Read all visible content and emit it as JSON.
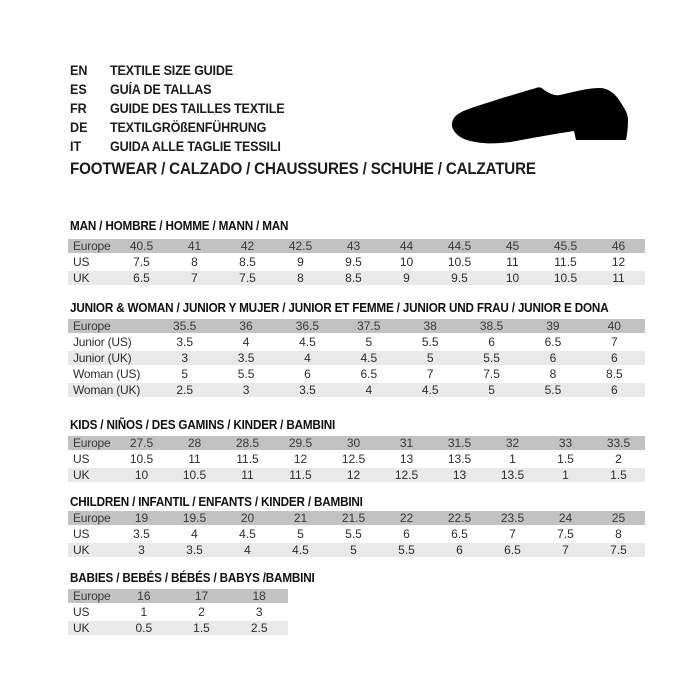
{
  "header": {
    "languages": [
      {
        "code": "EN",
        "label": "TEXTILE SIZE GUIDE"
      },
      {
        "code": "ES",
        "label": "GUÍA DE TALLAS"
      },
      {
        "code": "FR",
        "label": "GUIDE DES TAILLES TEXTILE"
      },
      {
        "code": "DE",
        "label": "TEXTILGRÖßENFÜHRUNG"
      },
      {
        "code": "IT",
        "label": "GUIDA ALLE TAGLIE TESSILI"
      }
    ],
    "category_line": "FOOTWEAR / CALZADO / CHAUSSURES / SCHUHE / CALZATURE",
    "shoe_icon": "dress-shoe-silhouette"
  },
  "tables": [
    {
      "title": "MAN / HOMBRE / HOMME / MANN / MAN",
      "rows": [
        {
          "label": "Europe",
          "values": [
            "40.5",
            "41",
            "42",
            "42.5",
            "43",
            "44",
            "44.5",
            "45",
            "45.5",
            "46"
          ]
        },
        {
          "label": "US",
          "values": [
            "7.5",
            "8",
            "8.5",
            "9",
            "9.5",
            "10",
            "10.5",
            "11",
            "11.5",
            "12"
          ]
        },
        {
          "label": "UK",
          "values": [
            "6.5",
            "7",
            "7.5",
            "8",
            "8.5",
            "9",
            "9.5",
            "10",
            "10.5",
            "11"
          ]
        }
      ]
    },
    {
      "title": "JUNIOR & WOMAN / JUNIOR Y MUJER / JUNIOR ET FEMME / JUNIOR UND FRAU / JUNIOR E DONA",
      "rows": [
        {
          "label": "Europe",
          "values": [
            "35.5",
            "36",
            "36.5",
            "37.5",
            "38",
            "38.5",
            "39",
            "40"
          ]
        },
        {
          "label": "Junior (US)",
          "values": [
            "3.5",
            "4",
            "4.5",
            "5",
            "5.5",
            "6",
            "6.5",
            "7"
          ]
        },
        {
          "label": "Junior (UK)",
          "values": [
            "3",
            "3.5",
            "4",
            "4.5",
            "5",
            "5.5",
            "6",
            "6"
          ]
        },
        {
          "label": "Woman (US)",
          "values": [
            "5",
            "5.5",
            "6",
            "6.5",
            "7",
            "7.5",
            "8",
            "8.5"
          ]
        },
        {
          "label": "Woman (UK)",
          "values": [
            "2.5",
            "3",
            "3.5",
            "4",
            "4.5",
            "5",
            "5.5",
            "6"
          ]
        }
      ]
    },
    {
      "title": "KIDS / NIÑOS / DES GAMINS / KINDER / BAMBINI",
      "rows": [
        {
          "label": "Europe",
          "values": [
            "27.5",
            "28",
            "28.5",
            "29.5",
            "30",
            "31",
            "31.5",
            "32",
            "33",
            "33.5"
          ]
        },
        {
          "label": "US",
          "values": [
            "10.5",
            "11",
            "11.5",
            "12",
            "12.5",
            "13",
            "13.5",
            "1",
            "1.5",
            "2"
          ]
        },
        {
          "label": "UK",
          "values": [
            "10",
            "10.5",
            "11",
            "11.5",
            "12",
            "12.5",
            "13",
            "13.5",
            "1",
            "1.5"
          ]
        }
      ]
    },
    {
      "title": "CHILDREN / INFANTIL / ENFANTS / KINDER / BAMBINI",
      "rows": [
        {
          "label": "Europe",
          "values": [
            "19",
            "19.5",
            "20",
            "21",
            "21.5",
            "22",
            "22.5",
            "23.5",
            "24",
            "25"
          ]
        },
        {
          "label": "US",
          "values": [
            "3.5",
            "4",
            "4.5",
            "5",
            "5.5",
            "6",
            "6.5",
            "7",
            "7.5",
            "8"
          ]
        },
        {
          "label": "UK",
          "values": [
            "3",
            "3.5",
            "4",
            "4.5",
            "5",
            "5.5",
            "6",
            "6.5",
            "7",
            "7.5"
          ]
        }
      ]
    },
    {
      "title": "BABIES  / BEBÉS / BÉBÉS / BABYS /BAMBINI",
      "rows": [
        {
          "label": "Europe",
          "values": [
            "16",
            "17",
            "18"
          ]
        },
        {
          "label": "US",
          "values": [
            "1",
            "2",
            "3"
          ]
        },
        {
          "label": "UK",
          "values": [
            "0.5",
            "1.5",
            "2.5"
          ]
        }
      ]
    }
  ],
  "colors": {
    "header_row": "#c2c2c2",
    "alt_row": "#e9e9e9",
    "text": "#2d2d2d",
    "shoe": "#000000"
  }
}
